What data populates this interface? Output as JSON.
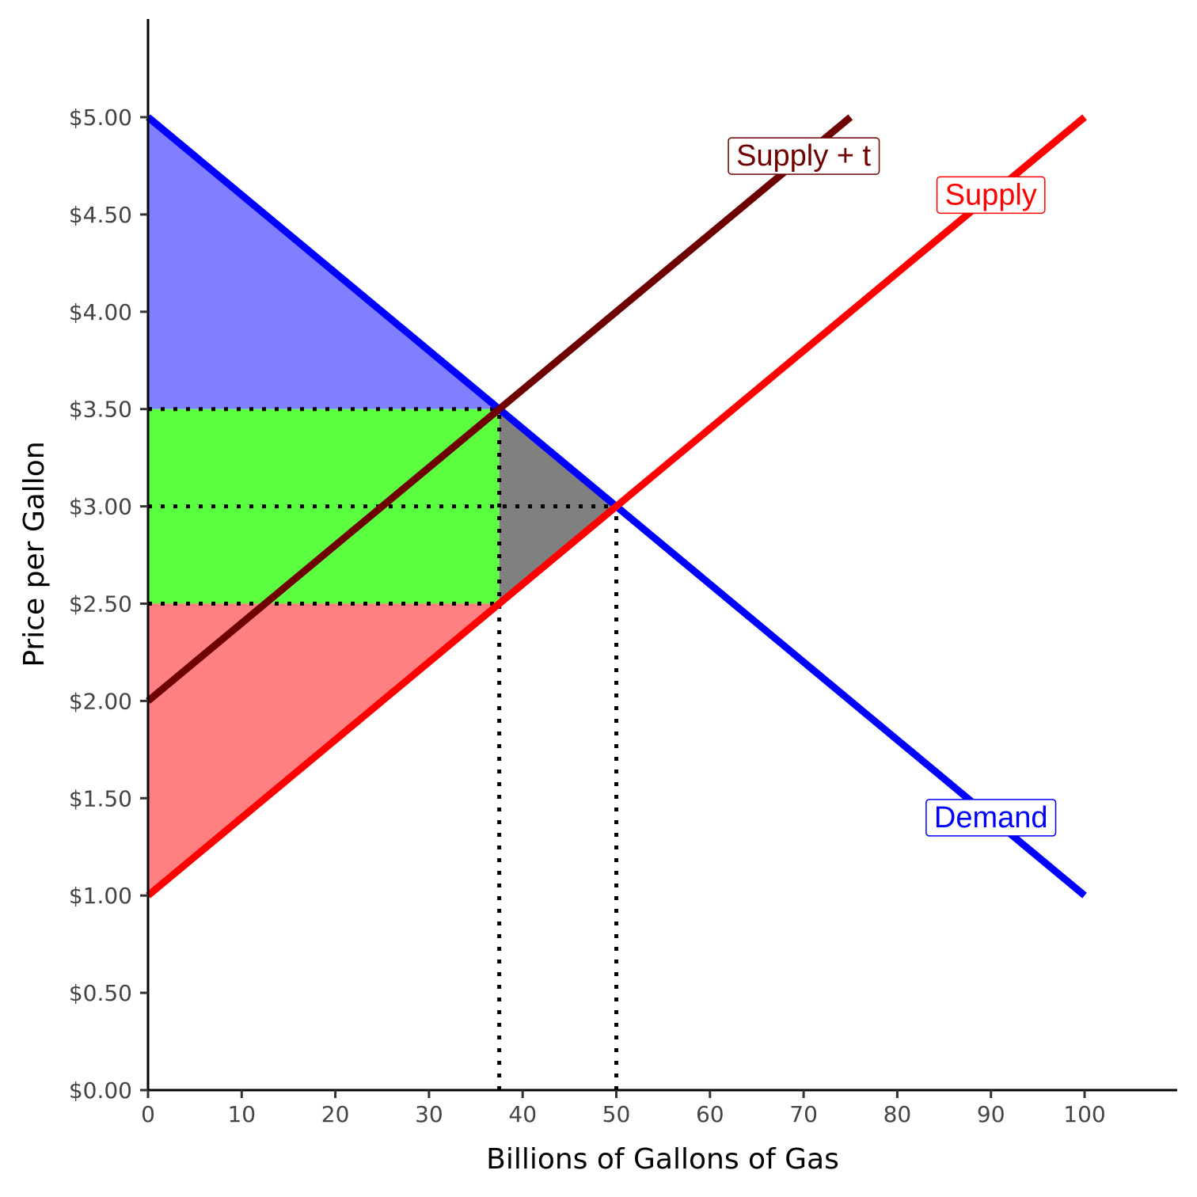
{
  "chart_data": {
    "type": "line",
    "xlabel": "Billions of Gallons of Gas",
    "ylabel": "Price per Gallon",
    "xlim": [
      0,
      110
    ],
    "ylim": [
      0,
      5.5
    ],
    "x_ticks": [
      {
        "value": 0,
        "label": "0"
      },
      {
        "value": 10,
        "label": "10"
      },
      {
        "value": 20,
        "label": "20"
      },
      {
        "value": 30,
        "label": "30"
      },
      {
        "value": 40,
        "label": "40"
      },
      {
        "value": 50,
        "label": "50"
      },
      {
        "value": 60,
        "label": "60"
      },
      {
        "value": 70,
        "label": "70"
      },
      {
        "value": 80,
        "label": "80"
      },
      {
        "value": 90,
        "label": "90"
      },
      {
        "value": 100,
        "label": "100"
      }
    ],
    "y_ticks": [
      {
        "value": 0,
        "label": "$0.00"
      },
      {
        "value": 0.5,
        "label": "$0.50"
      },
      {
        "value": 1,
        "label": "$1.00"
      },
      {
        "value": 1.5,
        "label": "$1.50"
      },
      {
        "value": 2,
        "label": "$2.00"
      },
      {
        "value": 2.5,
        "label": "$2.50"
      },
      {
        "value": 3,
        "label": "$3.00"
      },
      {
        "value": 3.5,
        "label": "$3.50"
      },
      {
        "value": 4,
        "label": "$4.00"
      },
      {
        "value": 4.5,
        "label": "$4.50"
      },
      {
        "value": 5,
        "label": "$5.00"
      }
    ],
    "grid": false,
    "series": [
      {
        "name": "Demand",
        "color": "#0000ff",
        "x": [
          0,
          100
        ],
        "y": [
          5.0,
          1.0
        ],
        "label_at": [
          90,
          1.4
        ]
      },
      {
        "name": "Supply",
        "color": "#ff0000",
        "x": [
          0,
          100
        ],
        "y": [
          1.0,
          5.0
        ],
        "label_at": [
          90,
          4.6
        ]
      },
      {
        "name": "Supply + t",
        "color": "#6e0000",
        "x": [
          0,
          75
        ],
        "y": [
          2.0,
          5.0
        ],
        "label_at": [
          70,
          4.8
        ]
      }
    ],
    "shaded_regions": [
      {
        "color": "#8080ff",
        "points": [
          [
            0,
            5.0
          ],
          [
            0,
            3.5
          ],
          [
            37.5,
            3.5
          ]
        ]
      },
      {
        "color": "#5cff40",
        "points": [
          [
            0,
            3.5
          ],
          [
            37.5,
            3.5
          ],
          [
            37.5,
            2.5
          ],
          [
            0,
            2.5
          ]
        ]
      },
      {
        "color": "#ff8080",
        "points": [
          [
            0,
            2.5
          ],
          [
            37.5,
            2.5
          ],
          [
            0,
            1.0
          ]
        ]
      },
      {
        "color": "#808080",
        "points": [
          [
            37.5,
            3.5
          ],
          [
            50,
            3.0
          ],
          [
            37.5,
            2.5
          ]
        ]
      }
    ],
    "reference_lines": [
      {
        "x": [
          0,
          37.5
        ],
        "y": [
          3.5,
          3.5
        ]
      },
      {
        "x": [
          0,
          50
        ],
        "y": [
          3.0,
          3.0
        ]
      },
      {
        "x": [
          0,
          37.5
        ],
        "y": [
          2.5,
          2.5
        ]
      },
      {
        "x": [
          37.5,
          37.5
        ],
        "y": [
          0,
          3.5
        ]
      },
      {
        "x": [
          50,
          50
        ],
        "y": [
          0,
          3.0
        ]
      }
    ]
  }
}
